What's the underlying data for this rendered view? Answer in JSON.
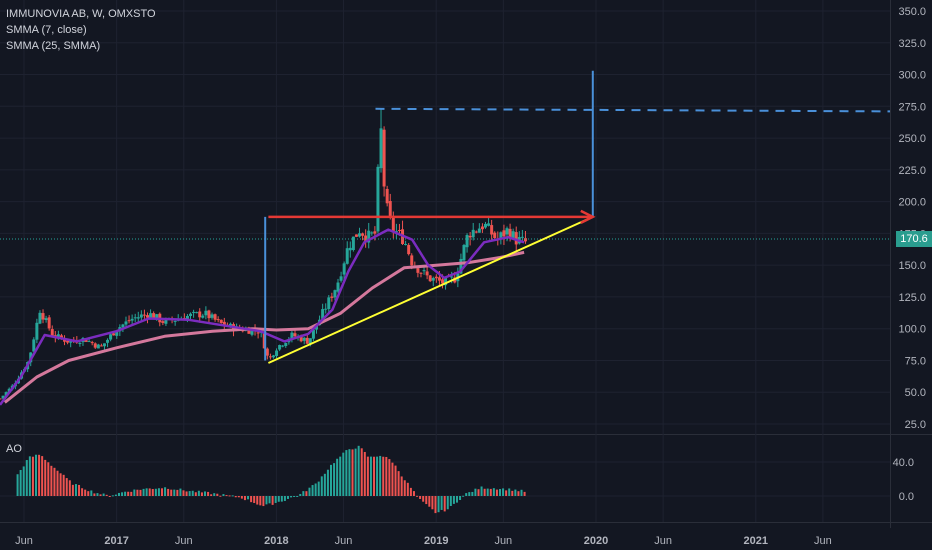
{
  "header": {
    "symbol_line": "IMMUNOVIA AB, W, OMXSTO",
    "indicator1": "SMMA (7, close)",
    "indicator2": "SMMA (25, SMMA)"
  },
  "ao_panel": {
    "label": "AO"
  },
  "price_badge": {
    "value": "170.6",
    "color": "#2a9d8f"
  },
  "colors": {
    "background": "#131722",
    "up": "#26a69a",
    "down": "#ef5350",
    "smma7": "#7b2cbf",
    "smma25": "#d4789c",
    "trendline": "#ffff33",
    "resistance": "#e53935",
    "measure": "#4a90d9",
    "grid": "#1e2230"
  },
  "chart_data": [
    {
      "type": "candlestick",
      "title": "IMMUNOVIA AB, W, OMXSTO",
      "y_ticks": [
        "350.0",
        "325.0",
        "300.0",
        "275.0",
        "250.0",
        "225.0",
        "200.0",
        "175.0",
        "150.0",
        "125.0",
        "100.0",
        "75.0",
        "50.0",
        "25.0"
      ],
      "ylim": [
        18,
        356
      ],
      "x_ticks": [
        {
          "label": "Jun",
          "t": 2016.42
        },
        {
          "label": "2017",
          "t": 2017.0
        },
        {
          "label": "Jun",
          "t": 2017.42
        },
        {
          "label": "2018",
          "t": 2018.0
        },
        {
          "label": "Jun",
          "t": 2018.42
        },
        {
          "label": "2019",
          "t": 2019.0
        },
        {
          "label": "Jun",
          "t": 2019.42
        },
        {
          "label": "2020",
          "t": 2020.0
        },
        {
          "label": "Jun",
          "t": 2020.42
        },
        {
          "label": "2021",
          "t": 2021.0
        },
        {
          "label": "Jun",
          "t": 2021.42
        }
      ],
      "xlim": [
        2016.27,
        2021.84
      ],
      "price_path": [
        [
          2016.27,
          45
        ],
        [
          2016.35,
          55
        ],
        [
          2016.45,
          75
        ],
        [
          2016.52,
          115
        ],
        [
          2016.6,
          95
        ],
        [
          2016.7,
          90
        ],
        [
          2016.8,
          92
        ],
        [
          2016.9,
          85
        ],
        [
          2017.0,
          100
        ],
        [
          2017.1,
          108
        ],
        [
          2017.2,
          112
        ],
        [
          2017.3,
          105
        ],
        [
          2017.45,
          110
        ],
        [
          2017.55,
          112
        ],
        [
          2017.65,
          104
        ],
        [
          2017.75,
          100
        ],
        [
          2017.9,
          98
        ],
        [
          2017.95,
          75
        ],
        [
          2018.0,
          85
        ],
        [
          2018.1,
          95
        ],
        [
          2018.2,
          90
        ],
        [
          2018.3,
          115
        ],
        [
          2018.38,
          135
        ],
        [
          2018.45,
          165
        ],
        [
          2018.52,
          178
        ],
        [
          2018.57,
          172
        ],
        [
          2018.62,
          175
        ],
        [
          2018.65,
          265
        ],
        [
          2018.68,
          200
        ],
        [
          2018.72,
          180
        ],
        [
          2018.8,
          170
        ],
        [
          2018.85,
          152
        ],
        [
          2018.95,
          140
        ],
        [
          2019.05,
          136
        ],
        [
          2019.12,
          140
        ],
        [
          2019.2,
          175
        ],
        [
          2019.3,
          182
        ],
        [
          2019.38,
          170
        ],
        [
          2019.45,
          178
        ],
        [
          2019.5,
          170
        ],
        [
          2019.56,
          168
        ]
      ],
      "smma7": [
        [
          2016.27,
          40
        ],
        [
          2016.4,
          62
        ],
        [
          2016.55,
          95
        ],
        [
          2016.75,
          90
        ],
        [
          2017.0,
          98
        ],
        [
          2017.2,
          108
        ],
        [
          2017.45,
          107
        ],
        [
          2017.7,
          102
        ],
        [
          2017.9,
          98
        ],
        [
          2018.05,
          90
        ],
        [
          2018.2,
          96
        ],
        [
          2018.35,
          115
        ],
        [
          2018.45,
          145
        ],
        [
          2018.55,
          168
        ],
        [
          2018.7,
          178
        ],
        [
          2018.85,
          170
        ],
        [
          2018.95,
          150
        ],
        [
          2019.05,
          140
        ],
        [
          2019.15,
          145
        ],
        [
          2019.3,
          168
        ],
        [
          2019.45,
          172
        ],
        [
          2019.55,
          168
        ]
      ],
      "smma25": [
        [
          2016.3,
          42
        ],
        [
          2016.5,
          62
        ],
        [
          2016.7,
          75
        ],
        [
          2017.0,
          85
        ],
        [
          2017.3,
          94
        ],
        [
          2017.6,
          98
        ],
        [
          2017.85,
          100
        ],
        [
          2018.0,
          99
        ],
        [
          2018.2,
          100
        ],
        [
          2018.4,
          112
        ],
        [
          2018.6,
          132
        ],
        [
          2018.8,
          148
        ],
        [
          2019.0,
          150
        ],
        [
          2019.2,
          152
        ],
        [
          2019.4,
          156
        ],
        [
          2019.55,
          160
        ]
      ],
      "trendline": [
        [
          2017.95,
          73
        ],
        [
          2019.98,
          188
        ]
      ],
      "resistance": [
        [
          2017.95,
          188
        ],
        [
          2019.98,
          188
        ]
      ],
      "measure_lines": {
        "left_vertical": [
          [
            2017.93,
            75
          ],
          [
            2017.93,
            188
          ]
        ],
        "right_vertical": [
          [
            2019.98,
            188
          ],
          [
            2019.98,
            303
          ]
        ],
        "target_dashed": [
          [
            2018.62,
            273
          ],
          [
            2021.84,
            271
          ]
        ]
      },
      "last_price": 170.6
    },
    {
      "type": "bar",
      "title": "AO",
      "y_ticks": [
        "40.0",
        "0.0"
      ],
      "ylim": [
        -25,
        58
      ],
      "series_zero": 0,
      "bars_shape": [
        [
          2016.38,
          25
        ],
        [
          2016.45,
          45
        ],
        [
          2016.52,
          49
        ],
        [
          2016.6,
          35
        ],
        [
          2016.72,
          15
        ],
        [
          2016.85,
          5
        ],
        [
          2016.95,
          0
        ],
        [
          2017.05,
          5
        ],
        [
          2017.15,
          8
        ],
        [
          2017.3,
          10
        ],
        [
          2017.45,
          6
        ],
        [
          2017.6,
          3
        ],
        [
          2017.78,
          -2
        ],
        [
          2017.92,
          -12
        ],
        [
          2018.05,
          -5
        ],
        [
          2018.15,
          2
        ],
        [
          2018.25,
          15
        ],
        [
          2018.35,
          38
        ],
        [
          2018.45,
          55
        ],
        [
          2018.52,
          58
        ],
        [
          2018.58,
          45
        ],
        [
          2018.65,
          48
        ],
        [
          2018.72,
          42
        ],
        [
          2018.8,
          20
        ],
        [
          2018.9,
          -5
        ],
        [
          2019.0,
          -20
        ],
        [
          2019.08,
          -15
        ],
        [
          2019.18,
          2
        ],
        [
          2019.28,
          10
        ],
        [
          2019.38,
          9
        ],
        [
          2019.5,
          7
        ],
        [
          2019.56,
          5
        ]
      ]
    }
  ]
}
